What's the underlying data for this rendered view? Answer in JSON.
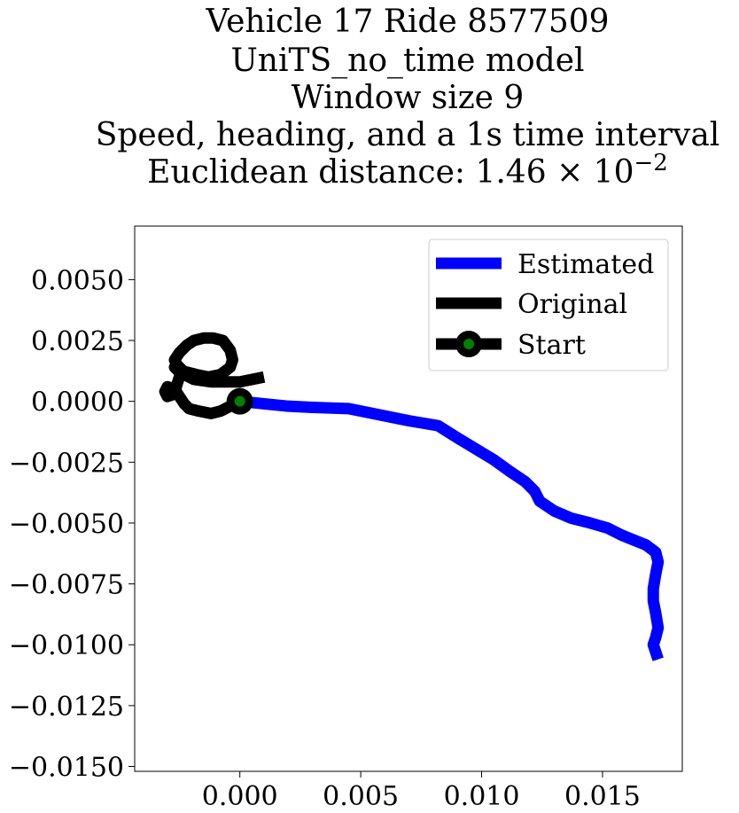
{
  "chart_data": {
    "type": "line",
    "title_lines": [
      "Vehicle 17 Ride 8577509",
      "UniTS_no_time model",
      "Window size 9",
      "Speed, heading, and a 1s time interval"
    ],
    "title_metric_prefix": "Euclidean distance: 1.46",
    "title_metric_times": "×",
    "title_metric_base": "10",
    "title_metric_exponent": "−2",
    "xlabel": "",
    "ylabel": "",
    "xlim": [
      -0.00435,
      0.0183
    ],
    "ylim": [
      -0.0152,
      0.0072
    ],
    "x_ticks": [
      0.0,
      0.005,
      0.01,
      0.015
    ],
    "x_tick_labels": [
      "0.000",
      "0.005",
      "0.010",
      "0.015"
    ],
    "y_ticks": [
      0.005,
      0.0025,
      0.0,
      -0.0025,
      -0.005,
      -0.0075,
      -0.01,
      -0.0125,
      -0.015
    ],
    "y_tick_labels": [
      "0.0050",
      "0.0025",
      "0.0000",
      "−0.0025",
      "−0.0050",
      "−0.0075",
      "−0.0100",
      "−0.0125",
      "−0.0150"
    ],
    "grid": false,
    "legend_position": "top-right",
    "series": [
      {
        "name": "Estimated",
        "color": "#0000ff",
        "x": [
          0.0,
          0.001,
          0.002,
          0.003,
          0.0045,
          0.0055,
          0.007,
          0.0082,
          0.009,
          0.0105,
          0.0112,
          0.0118,
          0.0122,
          0.0124,
          0.013,
          0.0137,
          0.0145,
          0.0152,
          0.0158,
          0.0163,
          0.0168,
          0.0172,
          0.0173,
          0.0172,
          0.0171,
          0.0171,
          0.0172,
          0.0173,
          0.0172,
          0.0171,
          0.0172,
          0.0173
        ],
        "y": [
          0.0,
          -0.0001,
          -0.0002,
          -0.00025,
          -0.0003,
          -0.0005,
          -0.0008,
          -0.001,
          -0.0015,
          -0.0024,
          -0.0029,
          -0.0033,
          -0.0037,
          -0.0041,
          -0.0045,
          -0.0048,
          -0.005,
          -0.0052,
          -0.0055,
          -0.0057,
          -0.0059,
          -0.0062,
          -0.0066,
          -0.0071,
          -0.0077,
          -0.0082,
          -0.0087,
          -0.0093,
          -0.0097,
          -0.01,
          -0.0103,
          -0.0106
        ]
      },
      {
        "name": "Original",
        "color": "#000000",
        "x": [
          0.0,
          -0.0004,
          -0.0008,
          -0.0012,
          -0.0017,
          -0.0021,
          -0.0023,
          -0.0025,
          -0.0027,
          -0.003,
          -0.0031,
          -0.003,
          -0.0027,
          -0.0026,
          -0.0025,
          -0.0024,
          -0.0026,
          -0.0027,
          -0.0025,
          -0.0022,
          -0.0019,
          -0.0015,
          -0.0011,
          -0.0007,
          -0.0004,
          -0.0003,
          -0.0004,
          -0.0008,
          -0.0013,
          -0.0018,
          -0.0022,
          -0.0025,
          -0.0027,
          -0.0025,
          -0.0019,
          -0.0012,
          -0.0005,
          0.0,
          0.0005,
          0.001
        ],
        "y": [
          0.0,
          -0.0002,
          -0.0004,
          -0.0005,
          -0.0004,
          -0.0003,
          -0.0001,
          0.0002,
          0.0005,
          0.0006,
          0.0004,
          0.0002,
          0.0003,
          0.0007,
          0.001,
          0.0013,
          0.0015,
          0.0017,
          0.002,
          0.0023,
          0.0025,
          0.0026,
          0.0026,
          0.0025,
          0.0021,
          0.0017,
          0.0014,
          0.0011,
          0.001,
          0.0011,
          0.0012,
          0.0013,
          0.0014,
          0.0012,
          0.0009,
          0.0008,
          0.0008,
          0.0008,
          0.0009,
          0.001
        ]
      }
    ],
    "start_point": {
      "name": "Start",
      "x": 0.0,
      "y": 0.0,
      "outer_color": "#000000",
      "inner_color": "#008000"
    },
    "legend": [
      {
        "label": "Estimated",
        "color": "#0000ff",
        "marker": false
      },
      {
        "label": "Original",
        "color": "#000000",
        "marker": false
      },
      {
        "label": "Start",
        "color": "#000000",
        "marker": true,
        "marker_color": "#008000"
      }
    ]
  }
}
